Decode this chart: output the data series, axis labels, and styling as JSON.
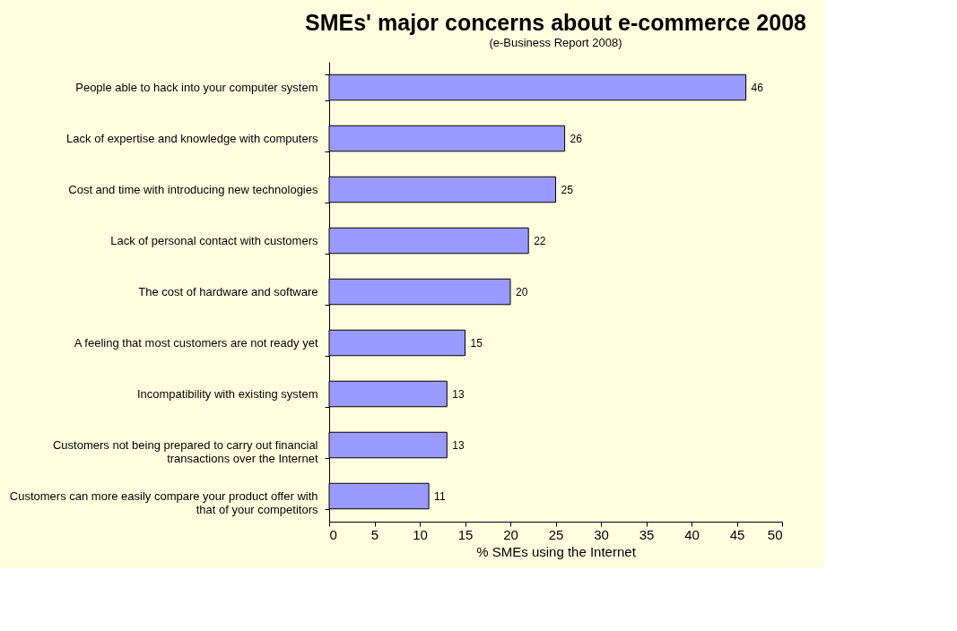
{
  "chart_data": {
    "type": "bar",
    "orientation": "horizontal",
    "title": "SMEs' major concerns about e-commerce 2008",
    "subtitle": "(e-Business Report 2008)",
    "xlabel": "% SMEs using the Internet",
    "categories": [
      "People able to hack into your computer system",
      "Lack of expertise and knowledge with computers",
      "Cost and time with introducing new technologies",
      "Lack of personal contact with customers",
      "The cost of hardware and software",
      "A feeling that most customers are not ready yet",
      "Incompatibility with existing system",
      "Customers not being prepared to carry out financial transactions over the Internet",
      "Customers can more easily compare your product offer with that of your competitors"
    ],
    "values": [
      46,
      26,
      25,
      22,
      20,
      15,
      13,
      13,
      11
    ],
    "color": "#9999ff",
    "xlim": [
      0,
      50
    ],
    "xticks": [
      0,
      5,
      10,
      15,
      20,
      25,
      30,
      35,
      40,
      45,
      50
    ],
    "grid": false,
    "data_labels": true
  }
}
